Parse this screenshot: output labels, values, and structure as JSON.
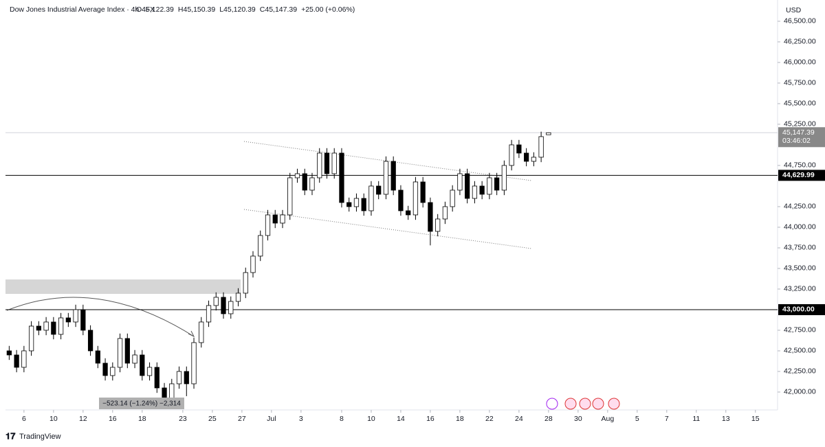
{
  "chart_data": {
    "type": "candlestick",
    "header": {
      "title": "Dow Jones Industrial Average Index · 4h · FX",
      "fields": [
        {
          "key": "O",
          "value": "45,122.39"
        },
        {
          "key": "H",
          "value": "45,150.39"
        },
        {
          "key": "L",
          "value": "45,120.39"
        },
        {
          "key": "C",
          "value": "45,147.39"
        }
      ],
      "change": "+25.00 (+0.06%)"
    },
    "currency": "USD",
    "x": [
      0,
      1,
      2,
      3,
      4,
      5,
      6,
      7,
      8,
      9,
      10,
      11,
      12,
      13,
      14,
      15,
      16,
      17,
      18,
      19,
      20,
      21,
      22,
      23,
      24,
      25,
      26,
      27,
      28,
      29,
      30,
      31,
      32,
      33,
      34,
      35,
      36,
      37,
      38,
      39,
      40,
      41,
      42,
      43,
      44,
      45,
      46,
      47,
      48,
      49,
      50,
      51,
      52,
      53,
      54,
      55,
      56,
      57,
      58,
      59,
      60,
      61,
      62,
      63,
      64,
      65,
      66,
      67,
      68,
      69,
      70,
      71,
      72,
      73
    ],
    "open": [
      42500,
      42450,
      42300,
      42500,
      42800,
      42750,
      42850,
      42700,
      42900,
      42850,
      43000,
      42750,
      42500,
      42350,
      42200,
      42300,
      42650,
      42350,
      42450,
      42200,
      42300,
      42050,
      41900,
      42100,
      42250,
      42100,
      42600,
      42850,
      43050,
      43150,
      42950,
      43100,
      43200,
      43450,
      43650,
      43900,
      44150,
      44050,
      44150,
      44600,
      44650,
      44450,
      44600,
      44900,
      44650,
      44900,
      44300,
      44250,
      44350,
      44200,
      44500,
      44400,
      44800,
      44450,
      44200,
      44150,
      44550,
      44300,
      43950,
      44100,
      44250,
      44450,
      44650,
      44350,
      44500,
      44400,
      44600,
      44450,
      44750,
      45000,
      44900,
      44800,
      44850,
      45122.39
    ],
    "high": [
      42560,
      42510,
      42560,
      42860,
      42860,
      42910,
      42910,
      42960,
      42960,
      43060,
      43060,
      42810,
      42560,
      42410,
      42360,
      42710,
      42710,
      42510,
      42510,
      42360,
      42360,
      42110,
      42160,
      42310,
      42310,
      42660,
      42910,
      43110,
      43210,
      43210,
      43160,
      43260,
      43510,
      43710,
      43960,
      44210,
      44210,
      44210,
      44660,
      44710,
      44710,
      44660,
      44960,
      44960,
      44960,
      44960,
      44360,
      44410,
      44410,
      44560,
      44560,
      44860,
      44860,
      44510,
      44260,
      44610,
      44610,
      44360,
      44160,
      44310,
      44510,
      44710,
      44710,
      44560,
      44560,
      44660,
      44660,
      44810,
      45060,
      45060,
      44960,
      44910,
      45160,
      45150.39
    ],
    "low": [
      42390,
      42240,
      42240,
      42440,
      42690,
      42690,
      42640,
      42640,
      42790,
      42790,
      42690,
      42440,
      42290,
      42140,
      42140,
      42240,
      42290,
      42290,
      42140,
      42140,
      41990,
      41840,
      41840,
      42040,
      41950,
      42040,
      42540,
      42790,
      42990,
      42890,
      42890,
      43040,
      43140,
      43390,
      43590,
      43840,
      43990,
      43990,
      44090,
      44540,
      44390,
      44390,
      44540,
      44590,
      44590,
      44240,
      44190,
      44190,
      44140,
      44140,
      44340,
      44340,
      44390,
      44140,
      44090,
      44090,
      44240,
      43780,
      43890,
      44040,
      44190,
      44390,
      44290,
      44290,
      44340,
      44340,
      44390,
      44390,
      44690,
      44840,
      44740,
      44740,
      44790,
      45120.39
    ],
    "close": [
      42450,
      42300,
      42500,
      42800,
      42750,
      42850,
      42700,
      42900,
      42850,
      43000,
      42750,
      42500,
      42350,
      42200,
      42300,
      42650,
      42350,
      42450,
      42200,
      42300,
      42050,
      41900,
      42100,
      42250,
      42100,
      42600,
      42850,
      43050,
      43150,
      42950,
      43100,
      43200,
      43450,
      43650,
      43900,
      44150,
      44050,
      44150,
      44600,
      44650,
      44450,
      44600,
      44900,
      44650,
      44900,
      44300,
      44250,
      44350,
      44200,
      44500,
      44400,
      44800,
      44450,
      44200,
      44150,
      44550,
      44300,
      43950,
      44100,
      44250,
      44450,
      44650,
      44350,
      44500,
      44400,
      44600,
      44450,
      44750,
      45000,
      44900,
      44800,
      44850,
      45100,
      45147.39
    ],
    "up_color": "#ffffff",
    "down_color": "#000000",
    "wick_color": "#000000",
    "xlim": [
      -0.5,
      104
    ],
    "xticks": [
      {
        "value": 2,
        "label": "6"
      },
      {
        "value": 6,
        "label": "10"
      },
      {
        "value": 10,
        "label": "12"
      },
      {
        "value": 14,
        "label": "16"
      },
      {
        "value": 18,
        "label": "18"
      },
      {
        "value": 23.5,
        "label": "23"
      },
      {
        "value": 27.5,
        "label": "25"
      },
      {
        "value": 31.5,
        "label": "27"
      },
      {
        "value": 35.5,
        "label": "Jul"
      },
      {
        "value": 39.5,
        "label": "3"
      },
      {
        "value": 45,
        "label": "8"
      },
      {
        "value": 49,
        "label": "10"
      },
      {
        "value": 53,
        "label": "14"
      },
      {
        "value": 57,
        "label": "16"
      },
      {
        "value": 61,
        "label": "18"
      },
      {
        "value": 65,
        "label": "22"
      },
      {
        "value": 69,
        "label": "24"
      },
      {
        "value": 73,
        "label": "28"
      },
      {
        "value": 77,
        "label": "30"
      },
      {
        "value": 81,
        "label": "Aug"
      },
      {
        "value": 85,
        "label": "5"
      },
      {
        "value": 89,
        "label": "7"
      },
      {
        "value": 93,
        "label": "11"
      },
      {
        "value": 97,
        "label": "13"
      },
      {
        "value": 101,
        "label": "15"
      }
    ],
    "ylim": [
      41783,
      46758
    ],
    "yticks": [
      {
        "value": 42000,
        "label": "42,000.00"
      },
      {
        "value": 42250,
        "label": "42,250.00"
      },
      {
        "value": 42500,
        "label": "42,500.00"
      },
      {
        "value": 42750,
        "label": "42,750.00"
      },
      {
        "value": 43250,
        "label": "43,250.00"
      },
      {
        "value": 43500,
        "label": "43,500.00"
      },
      {
        "value": 43750,
        "label": "43,750.00"
      },
      {
        "value": 44000,
        "label": "44,000.00"
      },
      {
        "value": 44250,
        "label": "44,250.00"
      },
      {
        "value": 44750,
        "label": "44,750.00"
      },
      {
        "value": 45250,
        "label": "45,250.00"
      },
      {
        "value": 45500,
        "label": "45,500.00"
      },
      {
        "value": 45750,
        "label": "45,750.00"
      },
      {
        "value": 46000,
        "label": "46,000.00"
      },
      {
        "value": 46250,
        "label": "46,250.00"
      },
      {
        "value": 46500,
        "label": "46,500.00"
      }
    ],
    "hlines": [
      {
        "value": 44629.99,
        "label": "44,629.99"
      },
      {
        "value": 43000,
        "label": "43,000.00"
      }
    ],
    "last_price": {
      "value": 45147.39,
      "label": "45,147.39",
      "countdown": "03:46:02"
    },
    "measure_label": "−523.14 (−1.24%) −2,314",
    "brand": "TradingView"
  }
}
